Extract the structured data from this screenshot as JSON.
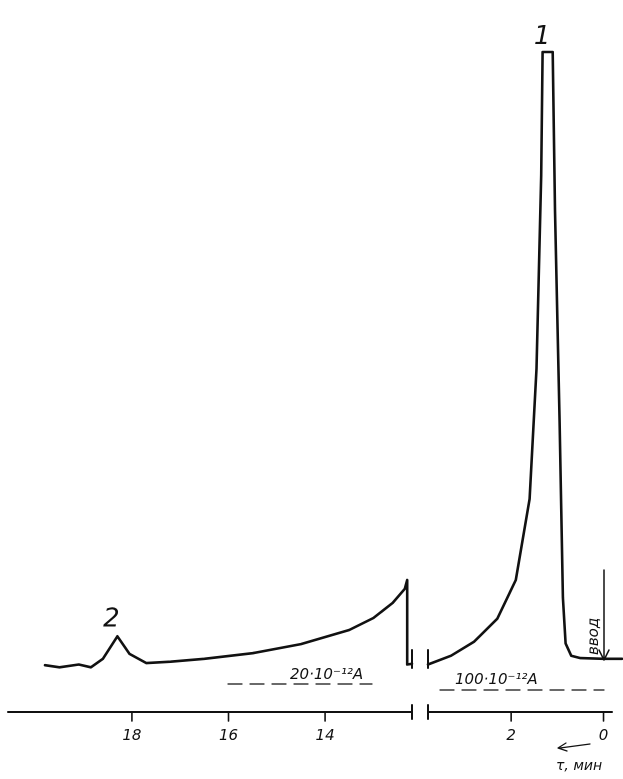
{
  "chart_data": {
    "type": "line",
    "title": "",
    "xlabel": "τ, мин",
    "ylabel": "",
    "x_axis_direction": "decreasing to the right",
    "axis_break": true,
    "grid": false,
    "segments": [
      {
        "name": "",
        "xlim": [
          19.8,
          12.2
        ],
        "sensitivity_label": "20·10⁻¹²А",
        "ticks": [
          {
            "value": 18,
            "label": "18"
          },
          {
            "value": 16,
            "label": "16"
          },
          {
            "value": 14,
            "label": "14"
          }
        ],
        "points": [
          [
            19.8,
            0.08
          ],
          [
            19.5,
            0.02
          ],
          [
            19.1,
            0.1
          ],
          [
            18.85,
            0.02
          ],
          [
            18.6,
            0.26
          ],
          [
            18.3,
            0.9
          ],
          [
            18.05,
            0.4
          ],
          [
            17.7,
            0.14
          ],
          [
            17.2,
            0.18
          ],
          [
            16.5,
            0.26
          ],
          [
            15.5,
            0.42
          ],
          [
            14.5,
            0.68
          ],
          [
            13.5,
            1.08
          ],
          [
            13.0,
            1.42
          ],
          [
            12.6,
            1.85
          ],
          [
            12.35,
            2.25
          ],
          [
            12.3,
            2.5
          ],
          [
            12.3,
            0.1
          ],
          [
            12.2,
            0.12
          ]
        ],
        "annotations": [
          {
            "label": "2",
            "x": 18.3,
            "y": 0.9
          }
        ]
      },
      {
        "name": "",
        "xlim": [
          3.8,
          -0.4
        ],
        "sensitivity_label": "100·10⁻¹²А",
        "ticks": [
          {
            "value": 2,
            "label": "2"
          },
          {
            "value": 0,
            "label": "0"
          }
        ],
        "points": [
          [
            3.8,
            0.1
          ],
          [
            3.3,
            0.35
          ],
          [
            2.8,
            0.75
          ],
          [
            2.3,
            1.4
          ],
          [
            1.9,
            2.5
          ],
          [
            1.6,
            4.8
          ],
          [
            1.45,
            8.5
          ],
          [
            1.35,
            14.0
          ],
          [
            1.32,
            17.5
          ],
          [
            1.1,
            17.5
          ],
          [
            1.05,
            13.0
          ],
          [
            0.95,
            7.0
          ],
          [
            0.88,
            2.0
          ],
          [
            0.82,
            0.7
          ],
          [
            0.7,
            0.35
          ],
          [
            0.5,
            0.28
          ],
          [
            0.0,
            0.26
          ],
          [
            -0.4,
            0.26
          ]
        ],
        "annotations": [
          {
            "label": "1",
            "x": 1.2,
            "y": 17.5
          },
          {
            "label": "ввод",
            "x": 0.1,
            "y": 0.26
          }
        ]
      }
    ]
  }
}
